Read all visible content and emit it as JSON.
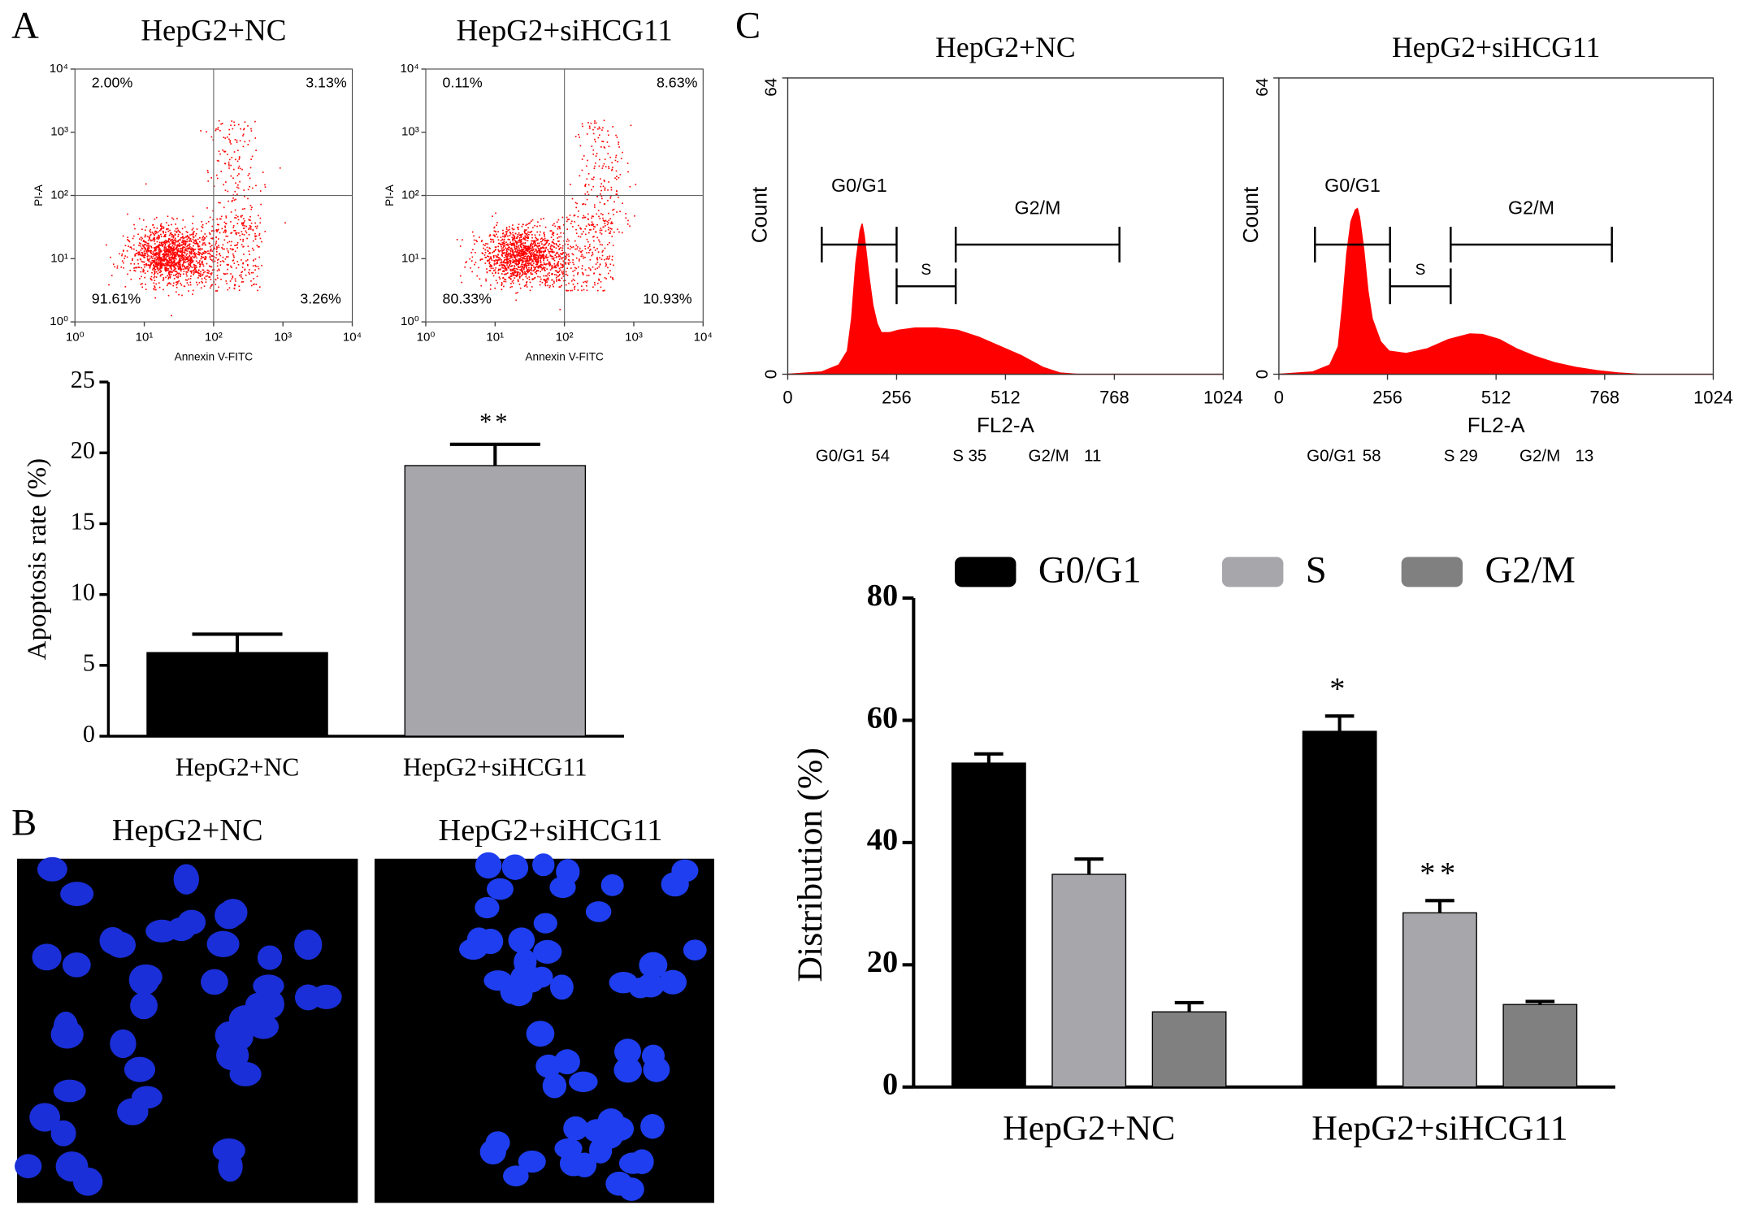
{
  "panel_labels": [
    "A",
    "B",
    "C"
  ],
  "images": [
    {
      "title": "HepG2+NC"
    },
    {
      "title": "HepG2+siHCG11"
    }
  ],
  "chart_data": [
    {
      "type": "flow",
      "title": "HepG2+NC",
      "x_label": "Annexin V-FITC",
      "y_label": "PI-A",
      "log_scale": true,
      "color": "#ff0000",
      "xlim": [
        1,
        10000
      ],
      "ylim": [
        1,
        10000
      ],
      "xticks": [
        {
          "value": 1,
          "label": "10⁰"
        },
        {
          "value": 10,
          "label": "10¹"
        },
        {
          "value": 100,
          "label": "10²"
        },
        {
          "value": 1000,
          "label": "10³"
        },
        {
          "value": 10000,
          "label": "10⁴"
        }
      ],
      "yticks": [
        {
          "value": 1,
          "label": "10⁰"
        },
        {
          "value": 10,
          "label": "10¹"
        },
        {
          "value": 100,
          "label": "10²"
        },
        {
          "value": 1000,
          "label": "10³"
        },
        {
          "value": 10000,
          "label": "10⁴"
        }
      ],
      "quadrant_x": 100,
      "quadrant_y": 100,
      "quadrant_labels": [
        "2.00%",
        "3.13%",
        "91.61%",
        "3.26%"
      ]
    },
    {
      "type": "flow",
      "title": "HepG2+siHCG11",
      "x_label": "Annexin V-FITC",
      "y_label": "PI-A",
      "log_scale": true,
      "color": "#ff0000",
      "xlim": [
        1,
        10000
      ],
      "ylim": [
        1,
        10000
      ],
      "xticks": [
        {
          "value": 1,
          "label": "10⁰"
        },
        {
          "value": 10,
          "label": "10¹"
        },
        {
          "value": 100,
          "label": "10²"
        },
        {
          "value": 1000,
          "label": "10³"
        },
        {
          "value": 10000,
          "label": "10⁴"
        }
      ],
      "yticks": [
        {
          "value": 1,
          "label": "10⁰"
        },
        {
          "value": 10,
          "label": "10¹"
        },
        {
          "value": 100,
          "label": "10²"
        },
        {
          "value": 1000,
          "label": "10³"
        },
        {
          "value": 10000,
          "label": "10⁴"
        }
      ],
      "quadrant_x": 100,
      "quadrant_y": 100,
      "quadrant_labels": [
        "0.11%",
        "8.63%",
        "80.33%",
        "10.93%"
      ]
    },
    {
      "type": "bar",
      "y_label": "Apoptosis rate (%)",
      "categories": [
        "HepG2+NC",
        "HepG2+siHCG11"
      ],
      "values": [
        5.9,
        19.1
      ],
      "errors": [
        1.3,
        1.5
      ],
      "colors": [
        "#000000",
        "#a7a6ab"
      ],
      "significance": [
        null,
        "**"
      ],
      "ylim": [
        0,
        25
      ],
      "yticks": [
        0,
        5,
        10,
        15,
        20,
        25
      ]
    },
    {
      "type": "histogram",
      "title": "HepG2+NC",
      "x_label": "FL2-A",
      "y_label": "Count",
      "color": "#ff0000",
      "xlim": [
        0,
        1024
      ],
      "ylim": [
        0,
        64
      ],
      "xticks": [
        0,
        256,
        512,
        768,
        1024
      ],
      "yticks": [
        0,
        64
      ],
      "x": [
        0,
        80,
        120,
        140,
        150,
        160,
        170,
        175,
        180,
        190,
        200,
        210,
        220,
        240,
        260,
        300,
        350,
        400,
        450,
        500,
        550,
        600,
        640,
        680,
        1024
      ],
      "values": [
        0,
        0.5,
        2,
        5,
        12,
        24,
        31,
        32.5,
        30,
        22,
        15,
        11,
        9,
        9,
        9.5,
        10,
        10,
        9.5,
        8,
        6,
        4,
        1.5,
        0.3,
        0,
        0
      ],
      "gates": [
        {
          "name": "G0/G1",
          "range": [
            80,
            256
          ],
          "level": 28
        },
        {
          "name": "S",
          "range": [
            256,
            395
          ],
          "level": 19
        },
        {
          "name": "G2/M",
          "range": [
            395,
            780
          ],
          "level": 28
        }
      ],
      "stats": [
        {
          "label": "G0/G1",
          "value": 54
        },
        {
          "label": "S",
          "value": 35
        },
        {
          "label": "G2/M",
          "value": 11
        }
      ]
    },
    {
      "type": "histogram",
      "title": "HepG2+siHCG11",
      "x_label": "FL2-A",
      "y_label": "Count",
      "color": "#ff0000",
      "xlim": [
        0,
        1024
      ],
      "ylim": [
        0,
        64
      ],
      "xticks": [
        0,
        256,
        512,
        768,
        1024
      ],
      "yticks": [
        0,
        64
      ],
      "x": [
        0,
        80,
        120,
        140,
        150,
        160,
        170,
        180,
        185,
        190,
        200,
        210,
        220,
        240,
        260,
        300,
        350,
        400,
        450,
        480,
        520,
        560,
        600,
        650,
        700,
        750,
        800,
        850,
        1024
      ],
      "values": [
        0,
        0.5,
        2,
        6,
        15,
        26,
        33,
        35.5,
        35.8,
        34,
        27,
        18,
        12,
        7,
        5,
        4.5,
        5.5,
        7.5,
        8.7,
        8.6,
        7.5,
        5.5,
        4,
        2.5,
        1.5,
        0.8,
        0.3,
        0,
        0
      ],
      "gates": [
        {
          "name": "G0/G1",
          "range": [
            85,
            262
          ],
          "level": 28
        },
        {
          "name": "S",
          "range": [
            262,
            405
          ],
          "level": 19
        },
        {
          "name": "G2/M",
          "range": [
            405,
            785
          ],
          "level": 28
        }
      ],
      "stats": [
        {
          "label": "G0/G1",
          "value": 58
        },
        {
          "label": "S",
          "value": 29
        },
        {
          "label": "G2/M",
          "value": 13
        }
      ]
    },
    {
      "type": "grouped_bar",
      "y_label": "Distribution (%)",
      "categories": [
        "HepG2+NC",
        "HepG2+siHCG11"
      ],
      "series": [
        {
          "name": "G0/G1",
          "color": "#000000",
          "values": [
            53,
            58.2
          ],
          "errors": [
            1.5,
            2.5
          ],
          "significance": [
            null,
            "*"
          ]
        },
        {
          "name": "S",
          "color": "#a7a6ab",
          "values": [
            34.8,
            28.5
          ],
          "errors": [
            2.5,
            2
          ],
          "significance": [
            null,
            "**"
          ]
        },
        {
          "name": "G2/M",
          "color": "#808080",
          "values": [
            12.3,
            13.5
          ],
          "errors": [
            1.5,
            0.5
          ],
          "significance": [
            null,
            null
          ]
        }
      ],
      "ylim": [
        0,
        80
      ],
      "yticks": [
        0,
        20,
        40,
        60,
        80
      ],
      "legend": "top"
    }
  ]
}
